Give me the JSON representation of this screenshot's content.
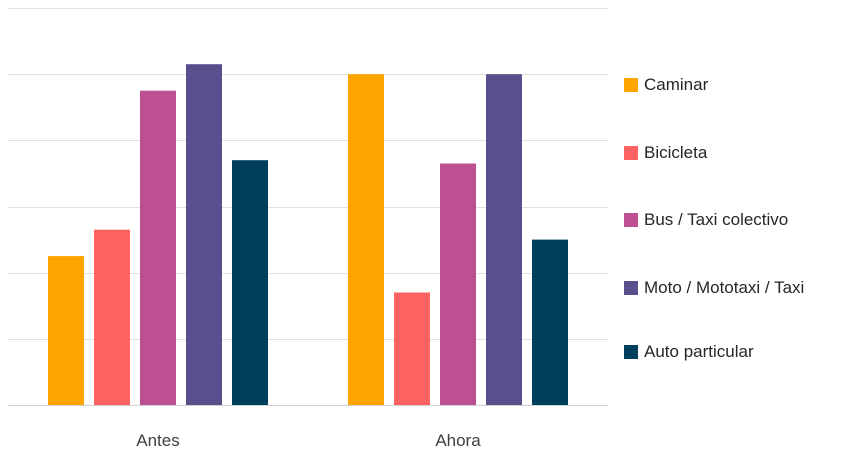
{
  "chart_data": {
    "type": "bar",
    "categories": [
      "Antes",
      "Ahora"
    ],
    "series": [
      {
        "name": "Caminar",
        "color": "#FFA500",
        "values": [
          2.25,
          5.0
        ]
      },
      {
        "name": "Bicicleta",
        "color": "#FF6361",
        "values": [
          2.65,
          1.7
        ]
      },
      {
        "name": "Bus / Taxi colectivo",
        "color": "#BC5090",
        "values": [
          4.75,
          3.65
        ]
      },
      {
        "name": "Moto / Mototaxi / Taxi",
        "color": "#58508D",
        "values": [
          5.15,
          5.0
        ]
      },
      {
        "name": "Auto particular",
        "color": "#003F5C",
        "values": [
          3.7,
          2.5
        ]
      }
    ],
    "ylim": [
      0,
      6
    ],
    "grid": true,
    "legend": "right",
    "title": "",
    "xlabel": "",
    "ylabel": ""
  }
}
